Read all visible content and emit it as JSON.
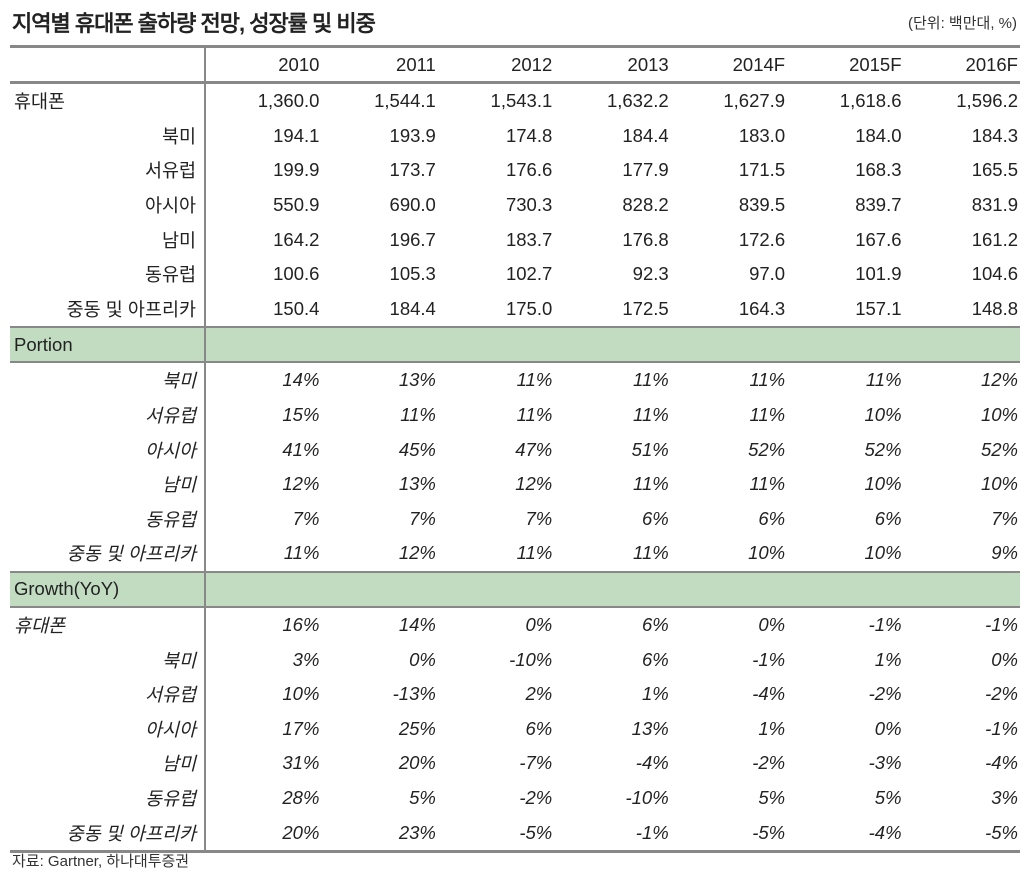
{
  "title": "지역별 휴대폰 출하량 전망, 성장률 및 비중",
  "unit": "(단위: 백만대, %)",
  "columns": [
    "2010",
    "2011",
    "2012",
    "2013",
    "2014F",
    "2015F",
    "2016F"
  ],
  "shipments": [
    {
      "label": "휴대폰",
      "values": [
        "1,360.0",
        "1,544.1",
        "1,543.1",
        "1,632.2",
        "1,627.9",
        "1,618.6",
        "1,596.2"
      ]
    },
    {
      "label": "북미",
      "values": [
        "194.1",
        "193.9",
        "174.8",
        "184.4",
        "183.0",
        "184.0",
        "184.3"
      ]
    },
    {
      "label": "서유럽",
      "values": [
        "199.9",
        "173.7",
        "176.6",
        "177.9",
        "171.5",
        "168.3",
        "165.5"
      ]
    },
    {
      "label": "아시아",
      "values": [
        "550.9",
        "690.0",
        "730.3",
        "828.2",
        "839.5",
        "839.7",
        "831.9"
      ]
    },
    {
      "label": "남미",
      "values": [
        "164.2",
        "196.7",
        "183.7",
        "176.8",
        "172.6",
        "167.6",
        "161.2"
      ]
    },
    {
      "label": "동유럽",
      "values": [
        "100.6",
        "105.3",
        "102.7",
        "92.3",
        "97.0",
        "101.9",
        "104.6"
      ]
    },
    {
      "label": "중동 및 아프리카",
      "values": [
        "150.4",
        "184.4",
        "175.0",
        "172.5",
        "164.3",
        "157.1",
        "148.8"
      ]
    }
  ],
  "portion_label": "Portion",
  "portion": [
    {
      "label": "북미",
      "values": [
        "14%",
        "13%",
        "11%",
        "11%",
        "11%",
        "11%",
        "12%"
      ]
    },
    {
      "label": "서유럽",
      "values": [
        "15%",
        "11%",
        "11%",
        "11%",
        "11%",
        "10%",
        "10%"
      ]
    },
    {
      "label": "아시아",
      "values": [
        "41%",
        "45%",
        "47%",
        "51%",
        "52%",
        "52%",
        "52%"
      ]
    },
    {
      "label": "남미",
      "values": [
        "12%",
        "13%",
        "12%",
        "11%",
        "11%",
        "10%",
        "10%"
      ]
    },
    {
      "label": "동유럽",
      "values": [
        "7%",
        "7%",
        "7%",
        "6%",
        "6%",
        "6%",
        "7%"
      ]
    },
    {
      "label": "중동 및 아프리카",
      "values": [
        "11%",
        "12%",
        "11%",
        "11%",
        "10%",
        "10%",
        "9%"
      ]
    }
  ],
  "growth_label": "Growth(YoY)",
  "growth": [
    {
      "label": "휴대폰",
      "values": [
        "16%",
        "14%",
        "0%",
        "6%",
        "0%",
        "-1%",
        "-1%"
      ]
    },
    {
      "label": "북미",
      "values": [
        "3%",
        "0%",
        "-10%",
        "6%",
        "-1%",
        "1%",
        "0%"
      ]
    },
    {
      "label": "서유럽",
      "values": [
        "10%",
        "-13%",
        "2%",
        "1%",
        "-4%",
        "-2%",
        "-2%"
      ]
    },
    {
      "label": "아시아",
      "values": [
        "17%",
        "25%",
        "6%",
        "13%",
        "1%",
        "0%",
        "-1%"
      ]
    },
    {
      "label": "남미",
      "values": [
        "31%",
        "20%",
        "-7%",
        "-4%",
        "-2%",
        "-3%",
        "-4%"
      ]
    },
    {
      "label": "동유럽",
      "values": [
        "28%",
        "5%",
        "-2%",
        "-10%",
        "5%",
        "5%",
        "3%"
      ]
    },
    {
      "label": "중동 및 아프리카",
      "values": [
        "20%",
        "23%",
        "-5%",
        "-1%",
        "-5%",
        "-4%",
        "-5%"
      ]
    }
  ],
  "source": "자료: Gartner, 하나대투증권",
  "colors": {
    "section_bg": "#c2dcc2",
    "rule": "#888888"
  }
}
